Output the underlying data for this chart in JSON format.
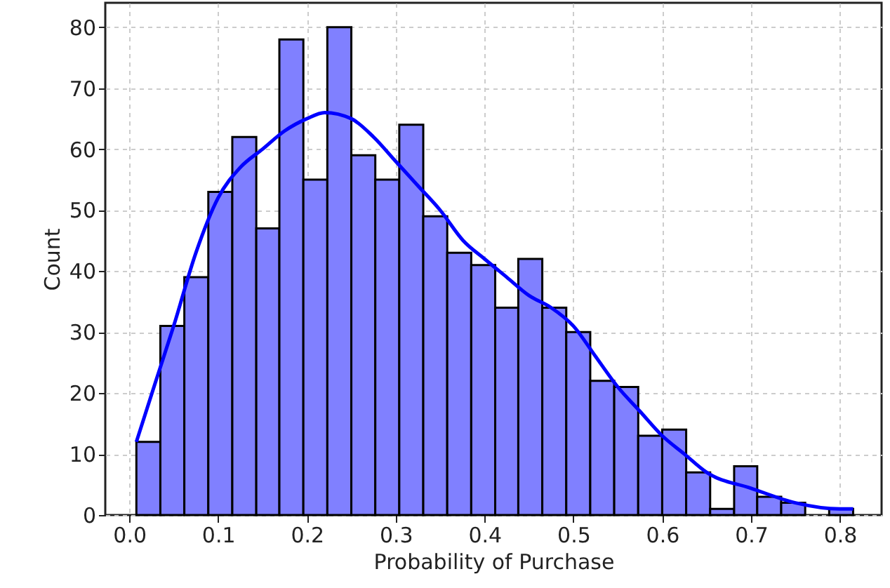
{
  "chart_data": {
    "type": "histogram",
    "xlabel": "Probability of Purchase",
    "ylabel": "Count",
    "bins": [
      0.008,
      0.035,
      0.062,
      0.089,
      0.116,
      0.143,
      0.169,
      0.196,
      0.223,
      0.25,
      0.277,
      0.304,
      0.331,
      0.358,
      0.385,
      0.412,
      0.438,
      0.465,
      0.492,
      0.519,
      0.546,
      0.573,
      0.6,
      0.627,
      0.654,
      0.681,
      0.707,
      0.734,
      0.761,
      0.788,
      0.815
    ],
    "values": [
      12,
      31,
      39,
      53,
      62,
      47,
      78,
      55,
      80,
      59,
      55,
      64,
      49,
      43,
      41,
      34,
      42,
      34,
      30,
      22,
      21,
      13,
      14,
      7,
      1,
      8,
      3,
      2,
      0,
      1
    ],
    "color": "#8080ff",
    "series": [
      {
        "type": "line",
        "color": "#0000ff",
        "x": [
          0.008,
          0.03,
          0.05,
          0.075,
          0.1,
          0.125,
          0.15,
          0.175,
          0.2,
          0.22,
          0.25,
          0.275,
          0.3,
          0.325,
          0.35,
          0.376,
          0.4,
          0.425,
          0.45,
          0.475,
          0.5,
          0.525,
          0.55,
          0.575,
          0.6,
          0.625,
          0.65,
          0.7,
          0.75,
          0.8,
          0.815
        ],
        "values": [
          12,
          22,
          31,
          43,
          52,
          57,
          60,
          63,
          65,
          66,
          65,
          62,
          58,
          54,
          50,
          45,
          42,
          39,
          36,
          34,
          31,
          26,
          21,
          17,
          13,
          10,
          7,
          4.4,
          2,
          1,
          1
        ]
      }
    ],
    "xlim": [
      -0.027,
      0.847
    ],
    "xticks": [
      {
        "value": 0,
        "label": "0.0"
      },
      0.1,
      0.2,
      0.3,
      0.4,
      0.5,
      0.6,
      0.7,
      0.8
    ],
    "ylim": [
      0,
      84
    ],
    "yticks": [
      0,
      10,
      20,
      30,
      40,
      50,
      60,
      70,
      80
    ],
    "grid": true
  }
}
